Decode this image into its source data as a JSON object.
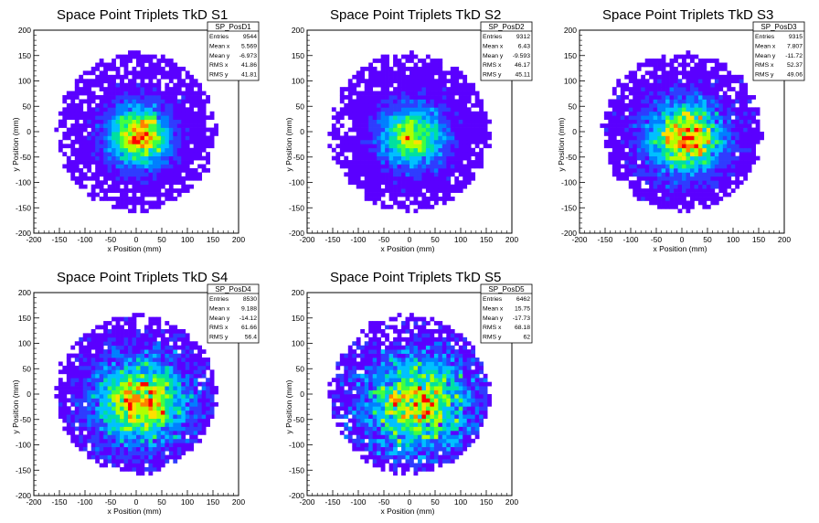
{
  "chart_data": [
    {
      "type": "heatmap",
      "title": "Space Point Triplets TkD S1",
      "xlabel": "x Position (mm)",
      "ylabel": "y Position (mm)",
      "xlim": [
        -200,
        200
      ],
      "ylim": [
        -200,
        200
      ],
      "xticks": [
        -200,
        -150,
        -100,
        -50,
        0,
        50,
        100,
        150,
        200
      ],
      "yticks": [
        -200,
        -150,
        -100,
        -50,
        0,
        50,
        100,
        150,
        200
      ],
      "stats": {
        "name": "SP_PosD1",
        "rows": [
          {
            "label": "Entries",
            "value": "9544"
          },
          {
            "label": "Mean x",
            "value": "5.569"
          },
          {
            "label": "Mean y",
            "value": "-6.973"
          },
          {
            "label": "RMS x",
            "value": "41.86"
          },
          {
            "label": "RMS y",
            "value": "41.81"
          }
        ]
      },
      "distribution": {
        "entries": 9544,
        "mean_x": 5.569,
        "mean_y": -6.973,
        "rms_x": 41.86,
        "rms_y": 41.81,
        "extent_radius": 155
      }
    },
    {
      "type": "heatmap",
      "title": "Space Point Triplets TkD S2",
      "xlabel": "x Position (mm)",
      "ylabel": "y Position (mm)",
      "xlim": [
        -200,
        200
      ],
      "ylim": [
        -200,
        200
      ],
      "xticks": [
        -200,
        -150,
        -100,
        -50,
        0,
        50,
        100,
        150,
        200
      ],
      "yticks": [
        -200,
        -150,
        -100,
        -50,
        0,
        50,
        100,
        150,
        200
      ],
      "stats": {
        "name": "SP_PosD2",
        "rows": [
          {
            "label": "Entries",
            "value": "9312"
          },
          {
            "label": "Mean x",
            "value": "6.43"
          },
          {
            "label": "Mean y",
            "value": "-9.593"
          },
          {
            "label": "RMS x",
            "value": "46.17"
          },
          {
            "label": "RMS y",
            "value": "45.11"
          }
        ]
      },
      "distribution": {
        "entries": 9312,
        "mean_x": 6.43,
        "mean_y": -9.593,
        "rms_x": 46.17,
        "rms_y": 45.11,
        "extent_radius": 155
      }
    },
    {
      "type": "heatmap",
      "title": "Space Point Triplets TkD S3",
      "xlabel": "x Position (mm)",
      "ylabel": "y Position (mm)",
      "xlim": [
        -200,
        200
      ],
      "ylim": [
        -200,
        200
      ],
      "xticks": [
        -200,
        -150,
        -100,
        -50,
        0,
        50,
        100,
        150,
        200
      ],
      "yticks": [
        -200,
        -150,
        -100,
        -50,
        0,
        50,
        100,
        150,
        200
      ],
      "stats": {
        "name": "SP_PosD3",
        "rows": [
          {
            "label": "Entries",
            "value": "9315"
          },
          {
            "label": "Mean x",
            "value": "7.807"
          },
          {
            "label": "Mean y",
            "value": "-11.72"
          },
          {
            "label": "RMS x",
            "value": "52.37"
          },
          {
            "label": "RMS y",
            "value": "49.06"
          }
        ]
      },
      "distribution": {
        "entries": 9315,
        "mean_x": 7.807,
        "mean_y": -11.72,
        "rms_x": 52.37,
        "rms_y": 49.06,
        "extent_radius": 155
      }
    },
    {
      "type": "heatmap",
      "title": "Space Point Triplets TkD S4",
      "xlabel": "x Position (mm)",
      "ylabel": "y Position (mm)",
      "xlim": [
        -200,
        200
      ],
      "ylim": [
        -200,
        200
      ],
      "xticks": [
        -200,
        -150,
        -100,
        -50,
        0,
        50,
        100,
        150,
        200
      ],
      "yticks": [
        -200,
        -150,
        -100,
        -50,
        0,
        50,
        100,
        150,
        200
      ],
      "stats": {
        "name": "SP_PosD4",
        "rows": [
          {
            "label": "Entries",
            "value": "8530"
          },
          {
            "label": "Mean x",
            "value": "9.188"
          },
          {
            "label": "Mean y",
            "value": "-14.12"
          },
          {
            "label": "RMS x",
            "value": "61.66"
          },
          {
            "label": "RMS y",
            "value": "56.4"
          }
        ]
      },
      "distribution": {
        "entries": 8530,
        "mean_x": 9.188,
        "mean_y": -14.12,
        "rms_x": 61.66,
        "rms_y": 56.4,
        "extent_radius": 155
      }
    },
    {
      "type": "heatmap",
      "title": "Space Point Triplets TkD S5",
      "xlabel": "x Position (mm)",
      "ylabel": "y Position (mm)",
      "xlim": [
        -200,
        200
      ],
      "ylim": [
        -200,
        200
      ],
      "xticks": [
        -200,
        -150,
        -100,
        -50,
        0,
        50,
        100,
        150,
        200
      ],
      "yticks": [
        -200,
        -150,
        -100,
        -50,
        0,
        50,
        100,
        150,
        200
      ],
      "stats": {
        "name": "SP_PosD5",
        "rows": [
          {
            "label": "Entries",
            "value": "6462"
          },
          {
            "label": "Mean x",
            "value": "15.75"
          },
          {
            "label": "Mean y",
            "value": "-17.73"
          },
          {
            "label": "RMS x",
            "value": "68.18"
          },
          {
            "label": "RMS y",
            "value": "62"
          }
        ]
      },
      "distribution": {
        "entries": 6462,
        "mean_x": 15.75,
        "mean_y": -17.73,
        "rms_x": 68.18,
        "rms_y": 62,
        "extent_radius": 155
      }
    }
  ],
  "palette": [
    "#5a00ff",
    "#2f3cff",
    "#007fff",
    "#00c0ff",
    "#00e0a0",
    "#40ff40",
    "#b0ff00",
    "#ffe000",
    "#ff8000",
    "#ff0000"
  ]
}
